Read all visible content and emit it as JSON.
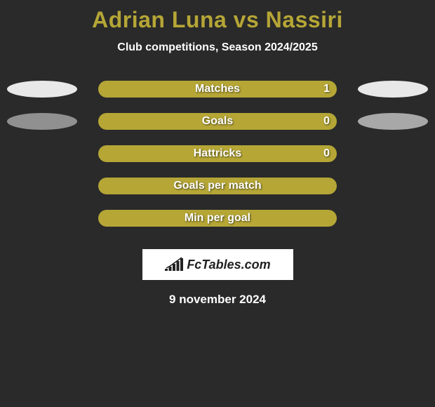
{
  "title": {
    "player1": "Adrian Luna",
    "vs": "vs",
    "player2": "Nassiri"
  },
  "subtitle": "Club competitions, Season 2024/2025",
  "colors": {
    "player1_bar": "#b5a636",
    "player2_bar": "#b5a636",
    "ellipse1_row1": "#e8e8e8",
    "ellipse2_row1": "#e8e8e8",
    "ellipse1_row2": "#909090",
    "ellipse2_row2": "#a8a8a8",
    "title_color": "#b5a636",
    "background": "#2a2a2a"
  },
  "bar_area_half_width_pct": 50,
  "rows": [
    {
      "label": "Matches",
      "left_value": "",
      "right_value": "1",
      "left_bar_pct": 50,
      "right_bar_pct": 50,
      "show_ellipses": true,
      "ellipse_left_color": "#e8e8e8",
      "ellipse_right_color": "#e8e8e8"
    },
    {
      "label": "Goals",
      "left_value": "",
      "right_value": "0",
      "left_bar_pct": 50,
      "right_bar_pct": 50,
      "show_ellipses": true,
      "ellipse_left_color": "#909090",
      "ellipse_right_color": "#a8a8a8"
    },
    {
      "label": "Hattricks",
      "left_value": "",
      "right_value": "0",
      "left_bar_pct": 50,
      "right_bar_pct": 50,
      "show_ellipses": false
    },
    {
      "label": "Goals per match",
      "left_value": "",
      "right_value": "",
      "left_bar_pct": 50,
      "right_bar_pct": 50,
      "show_ellipses": false
    },
    {
      "label": "Min per goal",
      "left_value": "",
      "right_value": "",
      "left_bar_pct": 50,
      "right_bar_pct": 50,
      "show_ellipses": false
    }
  ],
  "logo": {
    "text": "FcTables.com",
    "bars": [
      3,
      6,
      10,
      14,
      18
    ]
  },
  "date": "9 november 2024"
}
